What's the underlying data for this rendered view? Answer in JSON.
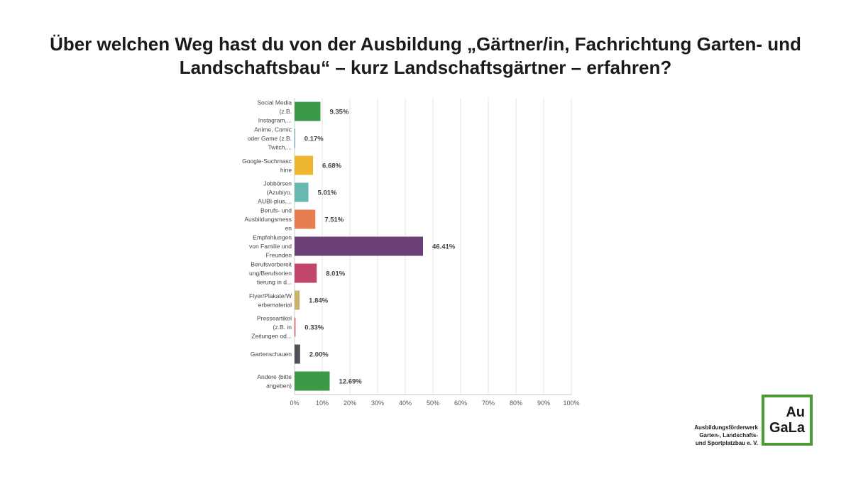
{
  "title": {
    "line1": "Über welchen Weg hast du von der Ausbildung „Gärtner/in, Fachrichtung Garten- und",
    "line2": "Landschaftsbau“ – kurz Landschaftsgärtner – erfahren?"
  },
  "chart_data": {
    "type": "bar",
    "orientation": "horizontal",
    "title": "Über welchen Weg hast du von der Ausbildung „Gärtner/in, Fachrichtung Garten- und Landschaftsbau“ – kurz Landschaftsgärtner – erfahren?",
    "xlabel": "",
    "ylabel": "",
    "xlim": [
      0,
      100
    ],
    "grid": true,
    "x_ticks": [
      "0%",
      "10%",
      "20%",
      "30%",
      "40%",
      "50%",
      "60%",
      "70%",
      "80%",
      "90%",
      "100%"
    ],
    "categories": [
      [
        "Social Media",
        "(z.B.",
        "Instagram,..."
      ],
      [
        "Anime, Comic",
        "oder Game (z.B.",
        "Twitch,..."
      ],
      [
        "Google-Suchmasc",
        "hine"
      ],
      [
        "Jobbörsen",
        "(Azubiyo,",
        "AUBI-plus,..."
      ],
      [
        "Berufs- und",
        "Ausbildungsmess",
        "en"
      ],
      [
        "Empfehlungen",
        "von Familie und",
        "Freunden"
      ],
      [
        "Berufsvorbereit",
        "ung/Berufsorien",
        "tierung in d..."
      ],
      [
        "Flyer/Plakate/W",
        "erbematerial"
      ],
      [
        "Presseartikel",
        "(z.B. in",
        "Zeitungen od..."
      ],
      [
        "Gartenschauen"
      ],
      [
        "Andere (bitte",
        "angeben)"
      ]
    ],
    "values": [
      9.35,
      0.17,
      6.68,
      5.01,
      7.51,
      46.41,
      8.01,
      1.84,
      0.33,
      2.0,
      12.69
    ],
    "value_labels": [
      "9.35%",
      "0.17%",
      "6.68%",
      "5.01%",
      "7.51%",
      "46.41%",
      "8.01%",
      "1.84%",
      "0.33%",
      "2.00%",
      "12.69%"
    ],
    "colors": [
      "#3b9a47",
      "#2f8f9a",
      "#efb62f",
      "#67b8b1",
      "#e77e51",
      "#6b3f77",
      "#c2456a",
      "#c9b26b",
      "#d44a4a",
      "#4f4f55",
      "#3b9a47"
    ]
  },
  "logo": {
    "line1": "Au",
    "line2": "GaLa"
  },
  "organization": {
    "lines": [
      "Ausbildungsförderwerk",
      "Garten-, Landschafts-",
      "und Sportplatzbau e. V."
    ]
  }
}
